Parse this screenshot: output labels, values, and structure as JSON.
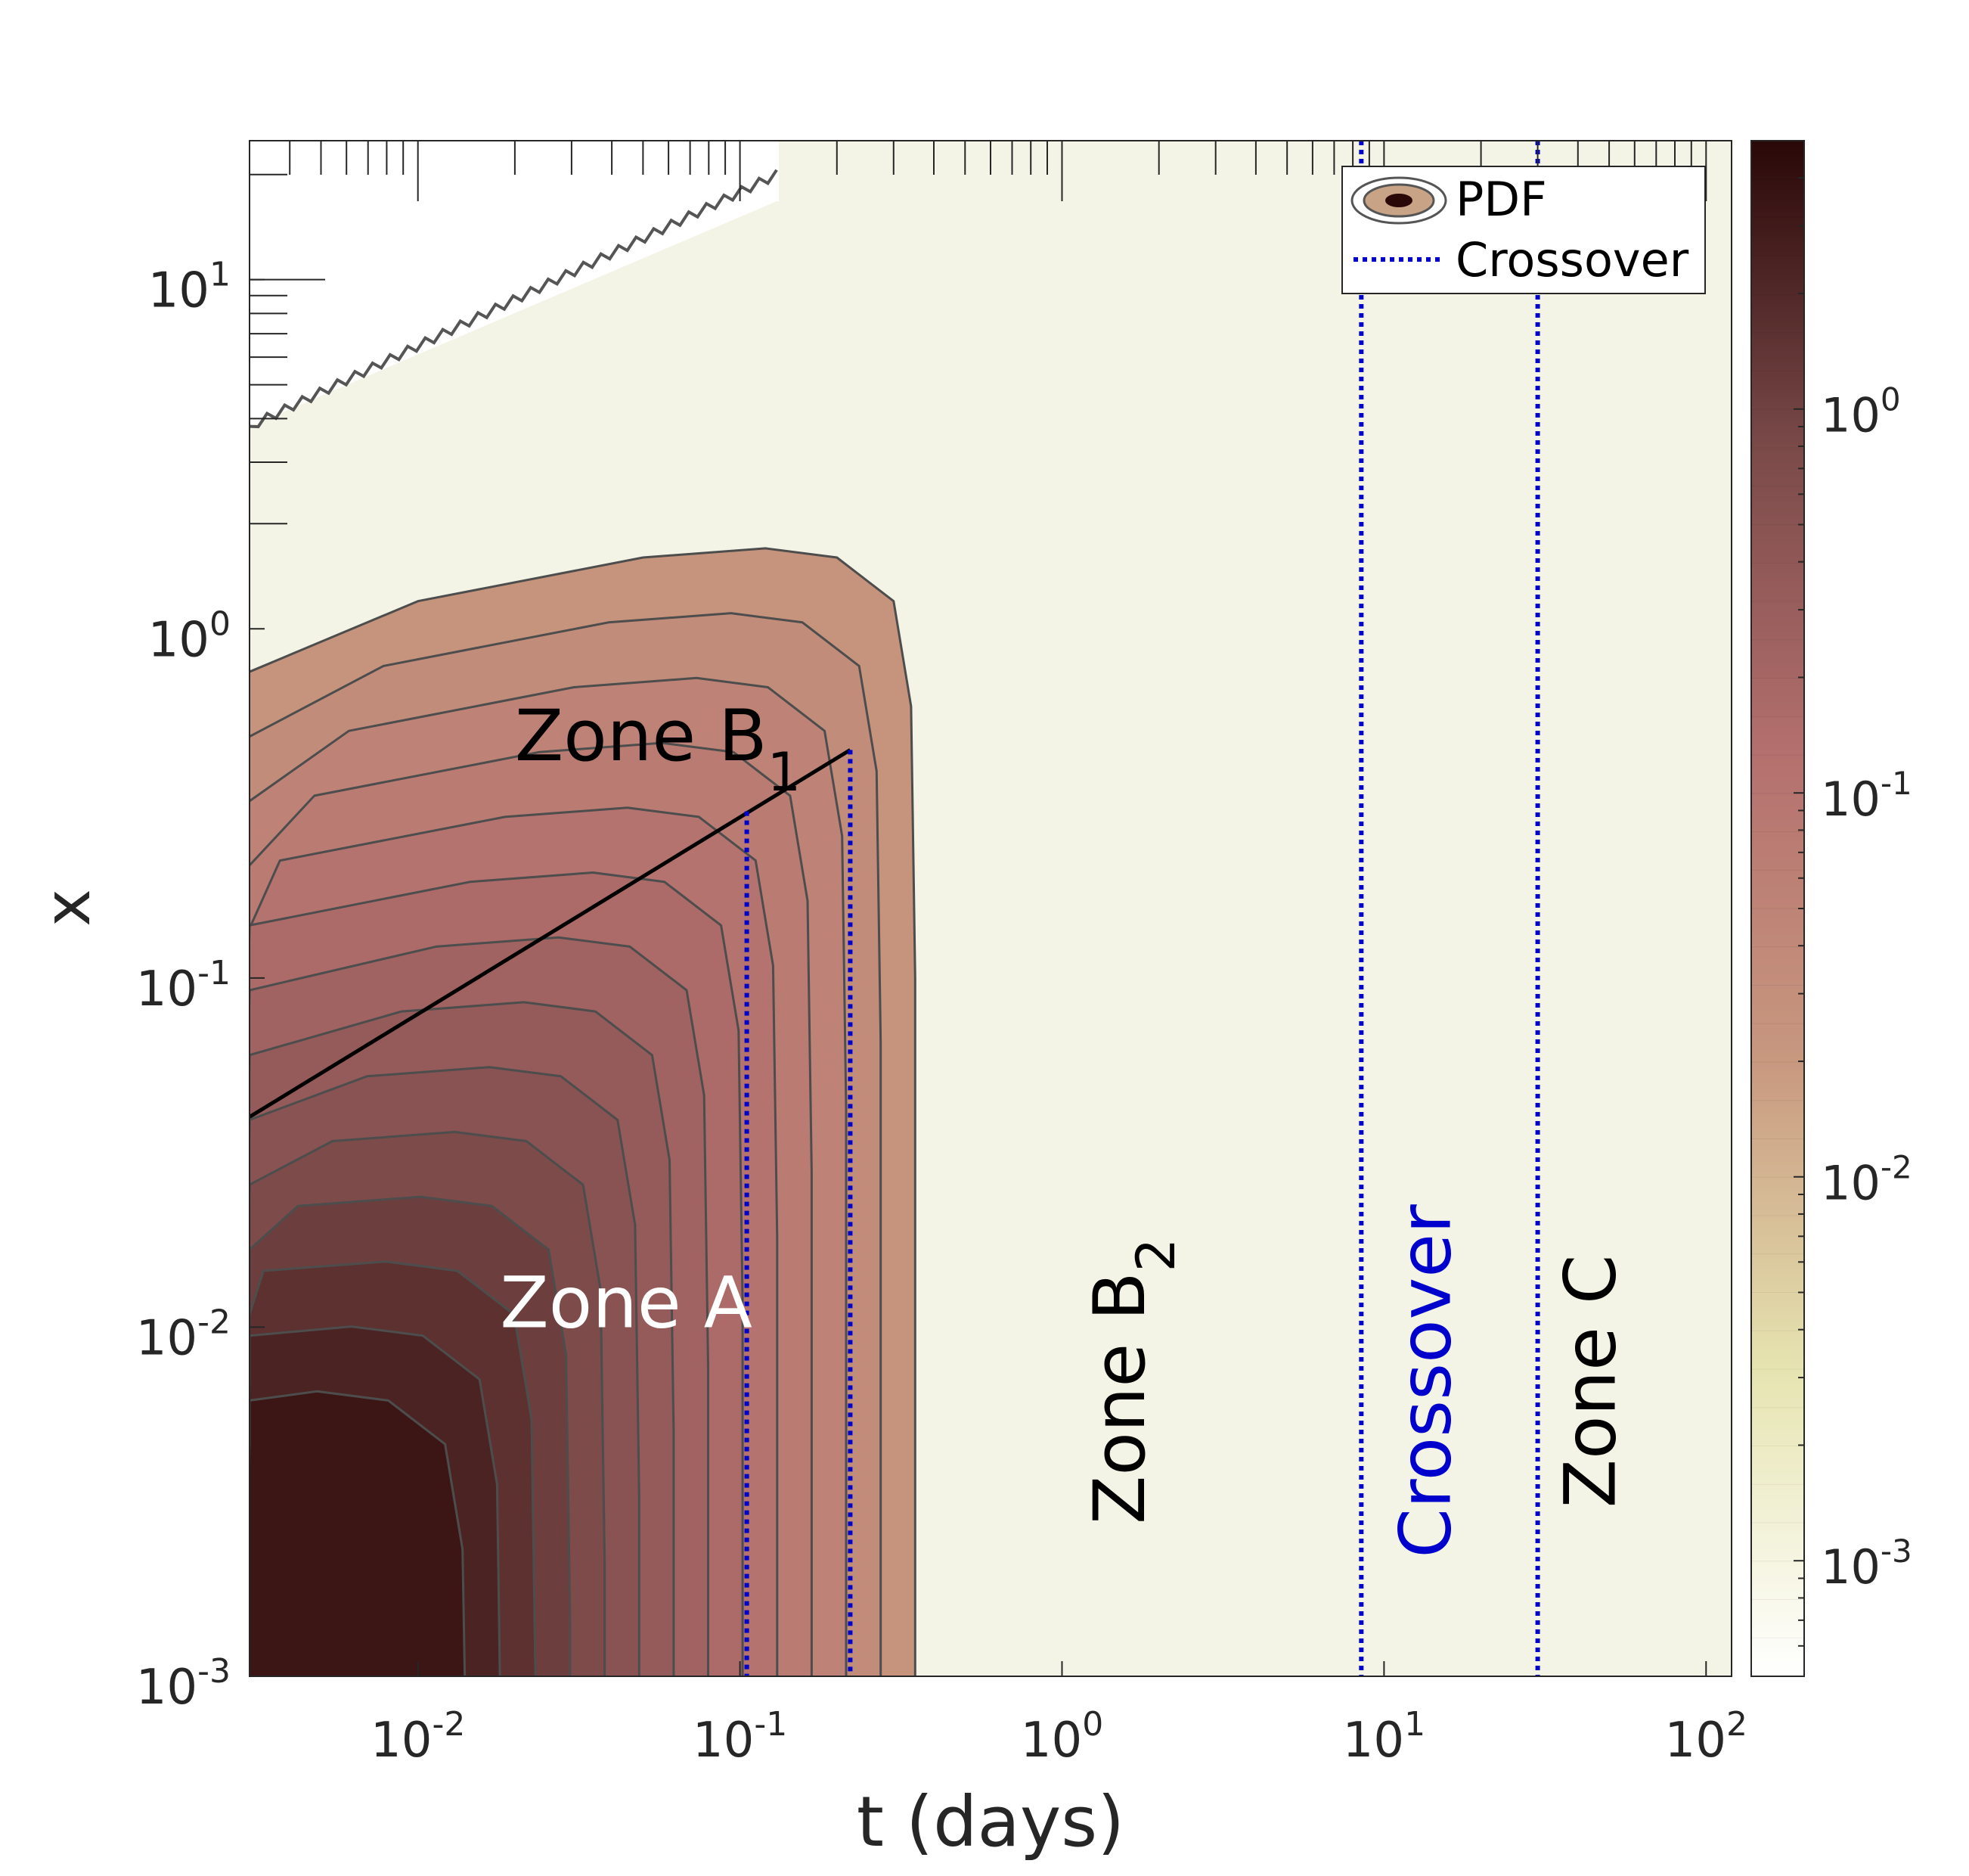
{
  "chart_data": {
    "type": "contour",
    "title": "",
    "xlabel": "t (days)",
    "ylabel": "x",
    "x_scale": "log",
    "y_scale": "log",
    "xlim": [
      0.003,
      120
    ],
    "ylim": [
      0.001,
      25
    ],
    "x_ticks": [
      {
        "value": 0.01,
        "base": "10",
        "exp": "-2"
      },
      {
        "value": 0.1,
        "base": "10",
        "exp": "-1"
      },
      {
        "value": 1,
        "base": "10",
        "exp": "0"
      },
      {
        "value": 10,
        "base": "10",
        "exp": "1"
      },
      {
        "value": 100,
        "base": "10",
        "exp": "2"
      }
    ],
    "y_ticks": [
      {
        "value": 0.001,
        "base": "10",
        "exp": "-3"
      },
      {
        "value": 0.01,
        "base": "10",
        "exp": "-2"
      },
      {
        "value": 0.1,
        "base": "10",
        "exp": "-1"
      },
      {
        "value": 1,
        "base": "10",
        "exp": "0"
      },
      {
        "value": 10,
        "base": "10",
        "exp": "1"
      }
    ],
    "colorbar": {
      "scale": "log",
      "range": [
        0.0005,
        5
      ],
      "ticks": [
        {
          "value": 0.001,
          "base": "10",
          "exp": "-3"
        },
        {
          "value": 0.01,
          "base": "10",
          "exp": "-2"
        },
        {
          "value": 0.1,
          "base": "10",
          "exp": "-1"
        },
        {
          "value": 1,
          "base": "10",
          "exp": "0"
        }
      ],
      "colors": [
        "#ffffff",
        "#e6e4b0",
        "#c8987f",
        "#b4706e",
        "#7a4a49",
        "#2a0808"
      ]
    },
    "legend": {
      "placement": "top-right",
      "entries": [
        {
          "label": "PDF",
          "style": "contour"
        },
        {
          "label": "Crossover",
          "style": "dotted",
          "color": "#0000cc"
        }
      ]
    },
    "crossover_lines": [
      {
        "t": 0.105,
        "x_max": 0.3,
        "color": "#0000cc"
      },
      {
        "t": 0.22,
        "x_max": 0.45,
        "color": "#0000cc"
      },
      {
        "t": 8.5,
        "color": "#0000cc"
      },
      {
        "t": 30,
        "color": "#0000cc"
      }
    ],
    "boundary_line": {
      "t": [
        0.003,
        0.22
      ],
      "x": [
        0.04,
        0.45
      ],
      "color": "#000000"
    },
    "outer_contour": {
      "t": [
        0.003,
        0.01,
        0.05,
        0.12,
        0.2,
        0.3,
        0.34,
        0.35,
        0.35
      ],
      "x": [
        0.75,
        1.2,
        1.6,
        1.7,
        1.6,
        1.2,
        0.6,
        0.1,
        0.001
      ]
    },
    "zones": [
      {
        "label": "Zone A",
        "t": 0.018,
        "x": 0.01,
        "color": "#ffffff"
      },
      {
        "label": "Zone B",
        "sub": "1",
        "t": 0.02,
        "x": 0.42,
        "color": "#000000"
      },
      {
        "label": "Zone B",
        "sub": "2",
        "t": 1.8,
        "x": 0.007,
        "color": "#000000",
        "orientation": "vertical"
      },
      {
        "label": "Crossover",
        "t": 16,
        "x": 0.007,
        "color": "#0000cc",
        "orientation": "vertical"
      },
      {
        "label": "Zone C",
        "t": 52,
        "x": 0.007,
        "color": "#000000",
        "orientation": "vertical"
      }
    ],
    "background_color": "#f3f4e6",
    "grid": false
  }
}
